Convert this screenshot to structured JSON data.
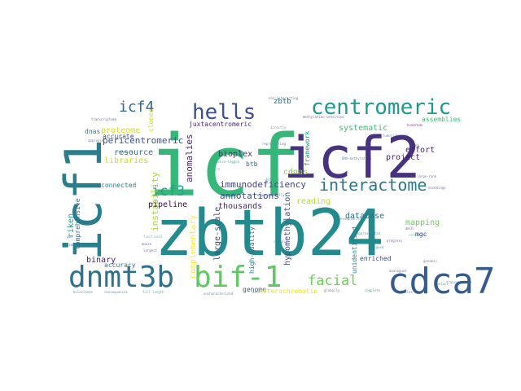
{
  "word_cloud": {
    "words": [
      {
        "text": "zbtb24",
        "color": "#238a8d"
      },
      {
        "text": "icf",
        "color": "#35b779"
      },
      {
        "text": "icf2",
        "color": "#46327e"
      },
      {
        "text": "icf1",
        "color": "#277f8e"
      },
      {
        "text": "dnmt3b",
        "color": "#2c728e"
      },
      {
        "text": "bif-1",
        "color": "#5ec962"
      },
      {
        "text": "cdca7",
        "color": "#365c8d"
      },
      {
        "text": "centromeric",
        "color": "#1f9a8a"
      },
      {
        "text": "hells",
        "color": "#3b528b"
      },
      {
        "text": "interactome",
        "color": "#2a788e"
      },
      {
        "text": "icf4",
        "color": "#31688e"
      },
      {
        "text": "icf3",
        "color": "#1fa187"
      },
      {
        "text": "facial",
        "color": "#6ece58"
      },
      {
        "text": "immunodeficiency",
        "color": "#414487"
      },
      {
        "text": "annotations",
        "color": "#3e4a89"
      },
      {
        "text": "instability",
        "color": "#a0da39"
      },
      {
        "text": "pericentromeric",
        "color": "#3b528b"
      },
      {
        "text": "anomalies",
        "color": "#481f70"
      },
      {
        "text": "juxtacentromeric",
        "color": "#482878"
      },
      {
        "text": "bioplex",
        "color": "#472d7b"
      },
      {
        "text": "systematic",
        "color": "#3fbc73"
      },
      {
        "text": "proteome",
        "color": "#d0e11c"
      },
      {
        "text": "libraries",
        "color": "#c2df23"
      },
      {
        "text": "resource",
        "color": "#2c728e"
      },
      {
        "text": "pipeline",
        "color": "#440154"
      },
      {
        "text": "thousands",
        "color": "#482475"
      },
      {
        "text": "complementary",
        "color": "#fde725"
      },
      {
        "text": "genome",
        "color": "#34618d"
      },
      {
        "text": "heterochromatin",
        "color": "#e5e419"
      },
      {
        "text": "hypomethylation",
        "color": "#3b528b"
      },
      {
        "text": "mapping",
        "color": "#6ece58"
      },
      {
        "text": "database",
        "color": "#2c728e"
      },
      {
        "text": "enriched",
        "color": "#3e4a89"
      },
      {
        "text": "unidentified",
        "color": "#26828e"
      },
      {
        "text": "binary",
        "color": "#481a6c"
      },
      {
        "text": "comprehensive",
        "color": "#2c728e"
      },
      {
        "text": "riken",
        "color": "#1f9e89"
      },
      {
        "text": "accuracy",
        "color": "#2c728e"
      },
      {
        "text": "reading",
        "color": "#b5de2b"
      },
      {
        "text": "high-quality",
        "color": "#2a788e"
      },
      {
        "text": "large-scale",
        "color": "#3e4a89"
      },
      {
        "text": "cdnas",
        "color": "#84d44b"
      },
      {
        "text": "connected",
        "color": "#287c8e"
      },
      {
        "text": "accurate",
        "color": "#3b528b"
      },
      {
        "text": "dnas",
        "color": "#2a788e"
      },
      {
        "text": "clones",
        "color": "#cae11f"
      },
      {
        "text": "zbtb",
        "color": "#31688e"
      },
      {
        "text": "framework",
        "color": "#1f9a8a"
      },
      {
        "text": "assemblies",
        "color": "#3fbc73"
      },
      {
        "text": "project",
        "color": "#481a6c"
      },
      {
        "text": "effort",
        "color": "#482878"
      },
      {
        "text": "mgc",
        "color": "#3e4a89"
      },
      {
        "text": "btb",
        "color": "#31688e"
      }
    ]
  }
}
